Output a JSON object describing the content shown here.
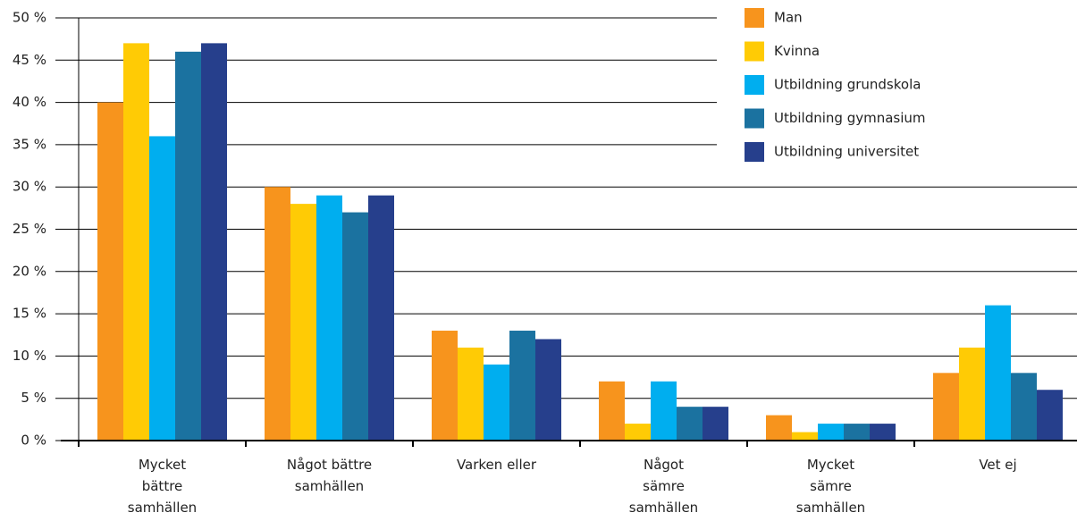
{
  "chart_data": {
    "type": "bar",
    "categories": [
      "Mycket\nbättre\nsamhällen",
      "Något bättre\nsamhällen",
      "Varken eller",
      "Något\nsämre\nsamhällen",
      "Mycket\nsämre\nsamhällen",
      "Vet ej"
    ],
    "series": [
      {
        "name": "Man",
        "color": "#f7941d",
        "values": [
          40,
          30,
          13,
          7,
          3,
          8
        ]
      },
      {
        "name": "Kvinna",
        "color": "#ffcb05",
        "values": [
          47,
          28,
          11,
          2,
          1,
          11
        ]
      },
      {
        "name": "Utbildning grundskola",
        "color": "#00aeef",
        "values": [
          36,
          29,
          9,
          7,
          2,
          16
        ]
      },
      {
        "name": "Utbildning gymnasium",
        "color": "#1b72a0",
        "values": [
          46,
          27,
          13,
          4,
          2,
          8
        ]
      },
      {
        "name": "Utbildning universitet",
        "color": "#263f8c",
        "values": [
          47,
          29,
          12,
          4,
          2,
          6
        ]
      }
    ],
    "ylim": [
      0,
      50
    ],
    "yticks": [
      {
        "value": 0,
        "label": "0 %"
      },
      {
        "value": 5,
        "label": "5 %"
      },
      {
        "value": 10,
        "label": "10 %"
      },
      {
        "value": 15,
        "label": "15 %"
      },
      {
        "value": 20,
        "label": "20 %"
      },
      {
        "value": 25,
        "label": "25 %"
      },
      {
        "value": 30,
        "label": "30 %"
      },
      {
        "value": 35,
        "label": "35 %"
      },
      {
        "value": 40,
        "label": "40 %"
      },
      {
        "value": 45,
        "label": "45 %"
      },
      {
        "value": 50,
        "label": "50 %"
      }
    ],
    "grid": true,
    "legend": "top-right"
  }
}
